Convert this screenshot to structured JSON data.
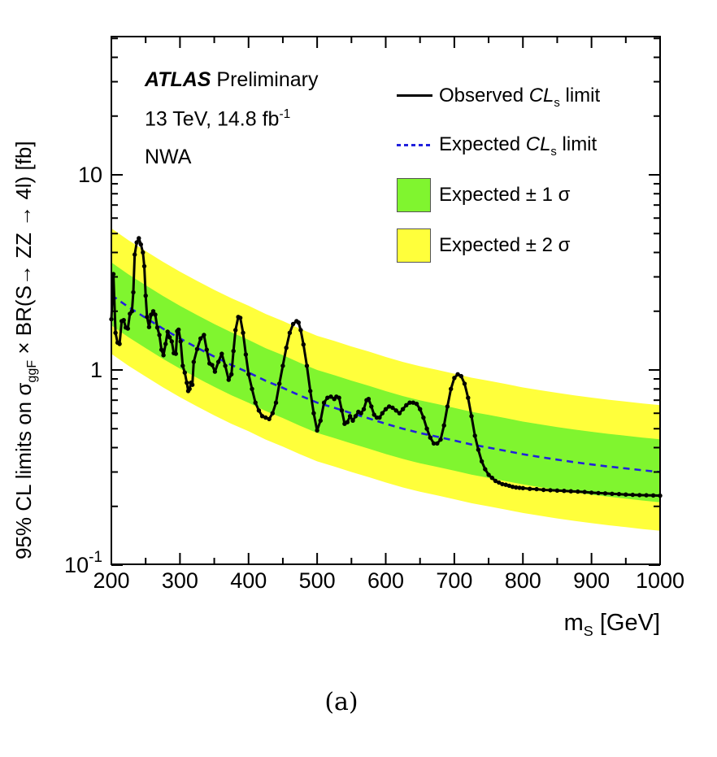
{
  "figure": {
    "atlas_label": "ATLAS",
    "atlas_status": " Preliminary",
    "lumi_text": "13 TeV, 14.8 fb",
    "lumi_sup": "-1",
    "analysis_label": "NWA",
    "caption": "(a)"
  },
  "titles": {
    "y_pre": "95% CL limits on σ",
    "y_sub": "ggF",
    "y_post": " × BR(S→ ZZ → 4l) [fb]",
    "x_base": "m",
    "x_sub": "S",
    "x_post": " [GeV]"
  },
  "legend": {
    "observed": {
      "pre": "Observed ",
      "cl": "CL",
      "sub": "s",
      "post": " limit"
    },
    "expected": {
      "pre": "Expected ",
      "cl": "CL",
      "sub": "s",
      "post": " limit"
    },
    "band1": {
      "label": "Expected ± 1 σ"
    },
    "band2": {
      "label": "Expected ± 2 σ"
    }
  },
  "colors": {
    "observed": "#000000",
    "expected": "#2121dd",
    "band_1sigma": "#80f52f",
    "band_2sigma": "#ffff3b"
  },
  "chart_data": {
    "type": "line",
    "title": "",
    "x_axis": {
      "label": "m_S [GeV]",
      "min": 200,
      "max": 1000,
      "scale": "linear",
      "major_ticks": [
        200,
        300,
        400,
        500,
        600,
        700,
        800,
        900,
        1000
      ],
      "minor_ticks": [
        250,
        350,
        450,
        550,
        650,
        750,
        850,
        950
      ]
    },
    "y_axis": {
      "label": "95% CL limits on σ_ggF × BR(S→ ZZ → 4l) [fb]",
      "min": 0.1,
      "max": 51,
      "scale": "log",
      "major_ticks": [
        {
          "value": 10,
          "label": "10"
        },
        {
          "value": 1,
          "label": "1"
        },
        {
          "value": 0.1,
          "label": "10",
          "sup": "-1"
        }
      ],
      "minor_ticks": [
        0.2,
        0.3,
        0.4,
        0.5,
        0.6,
        0.7,
        0.8,
        0.9,
        2,
        3,
        4,
        5,
        6,
        7,
        8,
        9,
        20,
        30,
        40,
        50
      ]
    },
    "legend_position": "top-right-inside",
    "grid": false,
    "series": [
      {
        "name": "Observed CL_s limit",
        "style": "solid-line-with-dots",
        "color": "#000000",
        "x": [
          200,
          203,
          206,
          209,
          212,
          215,
          218,
          221,
          224,
          227,
          230,
          232,
          234,
          237,
          240,
          243,
          246,
          248,
          250,
          252,
          255,
          258,
          261,
          264,
          267,
          270,
          273,
          276,
          279,
          282,
          285,
          288,
          291,
          294,
          296,
          298,
          301,
          304,
          307,
          310,
          312,
          314,
          316,
          318,
          320,
          325,
          330,
          335,
          339,
          343,
          347,
          351,
          356,
          361,
          366,
          371,
          375,
          378,
          381,
          385,
          388,
          392,
          396,
          400,
          405,
          410,
          415,
          420,
          425,
          430,
          435,
          440,
          445,
          450,
          455,
          460,
          465,
          470,
          473,
          476,
          480,
          485,
          490,
          495,
          500,
          505,
          510,
          515,
          520,
          525,
          528,
          532,
          536,
          540,
          544,
          548,
          552,
          556,
          560,
          564,
          568,
          572,
          575,
          579,
          583,
          587,
          591,
          595,
          600,
          605,
          610,
          615,
          620,
          625,
          630,
          635,
          640,
          645,
          650,
          655,
          660,
          665,
          670,
          675,
          680,
          685,
          690,
          695,
          700,
          705,
          710,
          715,
          720,
          725,
          730,
          735,
          740,
          745,
          750,
          755,
          760,
          765,
          770,
          775,
          780,
          785,
          790,
          795,
          800,
          810,
          820,
          830,
          840,
          850,
          860,
          870,
          880,
          890,
          900,
          910,
          920,
          930,
          940,
          950,
          960,
          970,
          980,
          990,
          1000
        ],
        "y": [
          1.82,
          3.1,
          1.55,
          1.38,
          1.36,
          1.78,
          1.8,
          1.65,
          1.63,
          1.94,
          2.0,
          2.5,
          3.9,
          4.5,
          4.73,
          4.4,
          4.0,
          3.4,
          2.4,
          1.87,
          1.66,
          1.92,
          2.0,
          1.92,
          1.65,
          1.51,
          1.27,
          1.19,
          1.36,
          1.57,
          1.47,
          1.4,
          1.22,
          1.21,
          1.58,
          1.61,
          1.4,
          1.05,
          0.97,
          0.86,
          0.78,
          0.8,
          0.86,
          0.84,
          1.1,
          1.28,
          1.45,
          1.51,
          1.27,
          1.08,
          1.06,
          0.98,
          1.1,
          1.21,
          1.05,
          0.89,
          0.95,
          1.25,
          1.6,
          1.87,
          1.85,
          1.55,
          1.2,
          0.95,
          0.8,
          0.68,
          0.62,
          0.58,
          0.57,
          0.56,
          0.6,
          0.68,
          0.85,
          1.05,
          1.3,
          1.55,
          1.72,
          1.78,
          1.75,
          1.6,
          1.35,
          1.05,
          0.78,
          0.6,
          0.49,
          0.55,
          0.68,
          0.72,
          0.73,
          0.71,
          0.73,
          0.72,
          0.62,
          0.53,
          0.54,
          0.58,
          0.55,
          0.58,
          0.61,
          0.6,
          0.63,
          0.7,
          0.71,
          0.65,
          0.59,
          0.57,
          0.57,
          0.6,
          0.63,
          0.65,
          0.64,
          0.62,
          0.6,
          0.63,
          0.66,
          0.68,
          0.68,
          0.67,
          0.63,
          0.57,
          0.5,
          0.45,
          0.42,
          0.42,
          0.44,
          0.52,
          0.65,
          0.8,
          0.91,
          0.95,
          0.93,
          0.85,
          0.72,
          0.58,
          0.46,
          0.39,
          0.34,
          0.31,
          0.29,
          0.28,
          0.27,
          0.265,
          0.26,
          0.258,
          0.255,
          0.252,
          0.25,
          0.249,
          0.248,
          0.246,
          0.245,
          0.243,
          0.242,
          0.241,
          0.24,
          0.239,
          0.238,
          0.237,
          0.235,
          0.234,
          0.233,
          0.232,
          0.231,
          0.23,
          0.229,
          0.2285,
          0.228,
          0.2275,
          0.227
        ]
      },
      {
        "name": "Expected CL_s limit",
        "style": "dashed-line",
        "color": "#2121dd",
        "x": [
          200,
          225,
          250,
          275,
          300,
          325,
          350,
          375,
          400,
          425,
          450,
          475,
          500,
          525,
          550,
          575,
          600,
          625,
          650,
          675,
          700,
          725,
          750,
          775,
          800,
          825,
          850,
          875,
          900,
          925,
          950,
          975,
          1000
        ],
        "y": [
          2.42,
          2.1,
          1.85,
          1.63,
          1.45,
          1.3,
          1.17,
          1.06,
          0.97,
          0.88,
          0.81,
          0.74,
          0.68,
          0.64,
          0.6,
          0.565,
          0.53,
          0.5,
          0.475,
          0.455,
          0.435,
          0.415,
          0.4,
          0.385,
          0.37,
          0.358,
          0.347,
          0.337,
          0.328,
          0.32,
          0.313,
          0.306,
          0.3
        ]
      }
    ],
    "bands": [
      {
        "name": "Expected ± 2 σ",
        "color": "#ffff3b",
        "base": "expected",
        "ratio_low": 0.5,
        "ratio_high": 2.2
      },
      {
        "name": "Expected ± 1 σ",
        "color": "#80f52f",
        "base": "expected",
        "ratio_low": 0.7,
        "ratio_high": 1.47
      }
    ]
  }
}
